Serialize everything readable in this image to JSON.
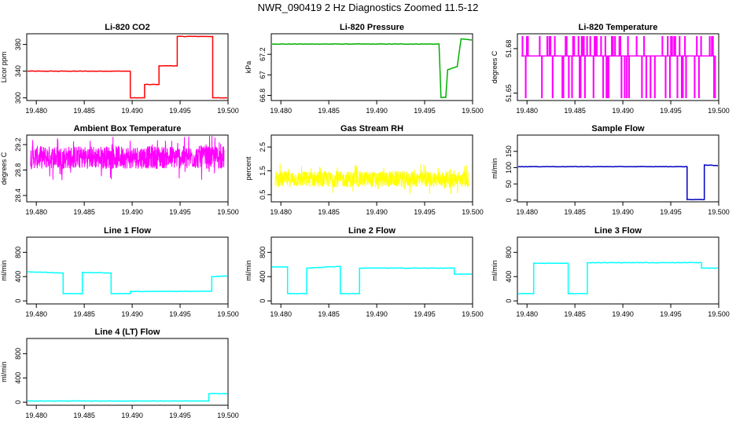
{
  "page_title": "NWR_090419  2 Hz Diagnostics Zoomed 11.5-12",
  "chart_data": [
    {
      "type": "line",
      "title": "Li-820 CO2",
      "ylabel": "Licor ppm",
      "xlabel": "",
      "color": "#ff0000",
      "xlim": [
        19.479,
        19.5
      ],
      "ylim": [
        296,
        396
      ],
      "x_ticks": [
        "19.480",
        "19.485",
        "19.490",
        "19.495",
        "19.500"
      ],
      "y_ticks": [
        300,
        340,
        380
      ],
      "series": [
        {
          "name": "CO2",
          "x": [
            19.479,
            19.4898,
            19.4898,
            19.4913,
            19.4913,
            19.4928,
            19.4928,
            19.4947,
            19.4947,
            19.4984,
            19.4984,
            19.5
          ],
          "values": [
            340,
            340,
            300,
            300,
            320,
            320,
            348,
            348,
            392,
            392,
            300,
            300
          ]
        }
      ]
    },
    {
      "type": "line",
      "title": "Li-820 Pressure",
      "ylabel": "kPa",
      "xlabel": "",
      "color": "#00b000",
      "xlim": [
        19.479,
        19.5
      ],
      "ylim": [
        66.75,
        67.4
      ],
      "x_ticks": [
        "19.480",
        "19.485",
        "19.490",
        "19.495",
        "19.500"
      ],
      "y_ticks": [
        66.8,
        67.0,
        67.2
      ],
      "series": [
        {
          "name": "Pressure",
          "x": [
            19.479,
            19.4965,
            19.4967,
            19.4972,
            19.4974,
            19.4984,
            19.4988,
            19.5
          ],
          "values": [
            67.3,
            67.3,
            66.78,
            66.78,
            67.05,
            67.08,
            67.35,
            67.34
          ]
        }
      ]
    },
    {
      "type": "line",
      "title": "Li-820 Temperature",
      "ylabel": "degrees C",
      "xlabel": "",
      "color": "#ff00ff",
      "xlim": [
        19.479,
        19.5
      ],
      "ylim": [
        51.645,
        51.69
      ],
      "x_ticks": [
        "19.480",
        "19.485",
        "19.490",
        "19.495",
        "19.500"
      ],
      "y_ticks": [
        "51.65",
        "51.68"
      ],
      "base_value": 51.675,
      "spike_high": 51.688,
      "spike_low": 51.647,
      "series": [
        {
          "name": "Temperature",
          "x": [
            19.479,
            19.5
          ],
          "values": [
            51.675,
            51.675
          ]
        }
      ]
    },
    {
      "type": "line",
      "title": "Ambient Box Temperature",
      "ylabel": "degrees C",
      "xlabel": "",
      "color": "#ff00ff",
      "xlim": [
        19.479,
        19.5
      ],
      "ylim": [
        28.3,
        29.35
      ],
      "x_ticks": [
        "19.480",
        "19.485",
        "19.490",
        "19.495",
        "19.500"
      ],
      "y_ticks": [
        28.4,
        28.8,
        29.2
      ],
      "mean": 29.0,
      "noise": 0.15,
      "series": [
        {
          "name": "Box Temperature",
          "x": [
            19.479,
            19.5
          ],
          "values": [
            29.0,
            29.0
          ]
        }
      ]
    },
    {
      "type": "line",
      "title": "Gas Stream RH",
      "ylabel": "percent",
      "xlabel": "",
      "color": "#ffff00",
      "xlim": [
        19.479,
        19.5
      ],
      "ylim": [
        0.2,
        3.0
      ],
      "x_ticks": [
        "19.480",
        "19.485",
        "19.490",
        "19.495",
        "19.500"
      ],
      "y_ticks": [
        0.5,
        1.5,
        2.5
      ],
      "mean": 1.15,
      "noise": 0.28,
      "series": [
        {
          "name": "RH",
          "x": [
            19.479,
            19.5
          ],
          "values": [
            1.15,
            1.15
          ]
        }
      ]
    },
    {
      "type": "line",
      "title": "Sample Flow",
      "ylabel": "ml/min",
      "xlabel": "",
      "color": "#0000c0",
      "xlim": [
        19.479,
        19.5
      ],
      "ylim": [
        -5,
        200
      ],
      "x_ticks": [
        "19.480",
        "19.485",
        "19.490",
        "19.495",
        "19.500"
      ],
      "y_ticks": [
        0,
        50,
        100,
        150
      ],
      "series": [
        {
          "name": "Sample Flow",
          "x": [
            19.479,
            19.4967,
            19.4967,
            19.4985,
            19.4985,
            19.5
          ],
          "values": [
            103,
            103,
            2,
            2,
            108,
            106
          ]
        }
      ]
    },
    {
      "type": "line",
      "title": "Line 1 Flow",
      "ylabel": "ml/min",
      "xlabel": "",
      "color": "#00ffff",
      "xlim": [
        19.479,
        19.5
      ],
      "ylim": [
        -50,
        1050
      ],
      "x_ticks": [
        "19.480",
        "19.485",
        "19.490",
        "19.495",
        "19.500"
      ],
      "y_ticks": [
        0,
        400,
        800
      ],
      "series": [
        {
          "name": "Line 1",
          "x": [
            19.479,
            19.4828,
            19.4828,
            19.4848,
            19.4848,
            19.4878,
            19.4878,
            19.4898,
            19.4898,
            19.4983,
            19.4983,
            19.5
          ],
          "values": [
            480,
            460,
            120,
            120,
            470,
            460,
            120,
            120,
            155,
            160,
            400,
            410
          ]
        }
      ]
    },
    {
      "type": "line",
      "title": "Line 2 Flow",
      "ylabel": "ml/min",
      "xlabel": "",
      "color": "#00ffff",
      "xlim": [
        19.479,
        19.5
      ],
      "ylim": [
        -50,
        1050
      ],
      "x_ticks": [
        "19.480",
        "19.485",
        "19.490",
        "19.495",
        "19.500"
      ],
      "y_ticks": [
        0,
        400,
        800
      ],
      "series": [
        {
          "name": "Line 2",
          "x": [
            19.479,
            19.4807,
            19.4807,
            19.4827,
            19.4827,
            19.4862,
            19.4862,
            19.4882,
            19.4882,
            19.4981,
            19.4981,
            19.5
          ],
          "values": [
            560,
            560,
            120,
            120,
            540,
            570,
            120,
            120,
            540,
            540,
            440,
            440
          ]
        }
      ]
    },
    {
      "type": "line",
      "title": "Line 3 Flow",
      "ylabel": "ml/min",
      "xlabel": "",
      "color": "#00ffff",
      "xlim": [
        19.479,
        19.5
      ],
      "ylim": [
        -50,
        1050
      ],
      "x_ticks": [
        "19.480",
        "19.485",
        "19.490",
        "19.495",
        "19.500"
      ],
      "y_ticks": [
        0,
        400,
        800
      ],
      "series": [
        {
          "name": "Line 3",
          "x": [
            19.479,
            19.4807,
            19.4807,
            19.4843,
            19.4843,
            19.4863,
            19.4863,
            19.4982,
            19.4982,
            19.5
          ],
          "values": [
            120,
            120,
            620,
            620,
            120,
            120,
            630,
            630,
            540,
            540
          ]
        }
      ]
    },
    {
      "type": "line",
      "title": "Line 4 (LT) Flow",
      "ylabel": "ml/min",
      "xlabel": "",
      "color": "#00ffff",
      "xlim": [
        19.479,
        19.5
      ],
      "ylim": [
        -50,
        1050
      ],
      "x_ticks": [
        "19.480",
        "19.485",
        "19.490",
        "19.495",
        "19.500"
      ],
      "y_ticks": [
        0,
        400,
        800
      ],
      "series": [
        {
          "name": "Line 4",
          "x": [
            19.479,
            19.498,
            19.498,
            19.5
          ],
          "values": [
            20,
            20,
            140,
            140
          ]
        }
      ]
    }
  ]
}
